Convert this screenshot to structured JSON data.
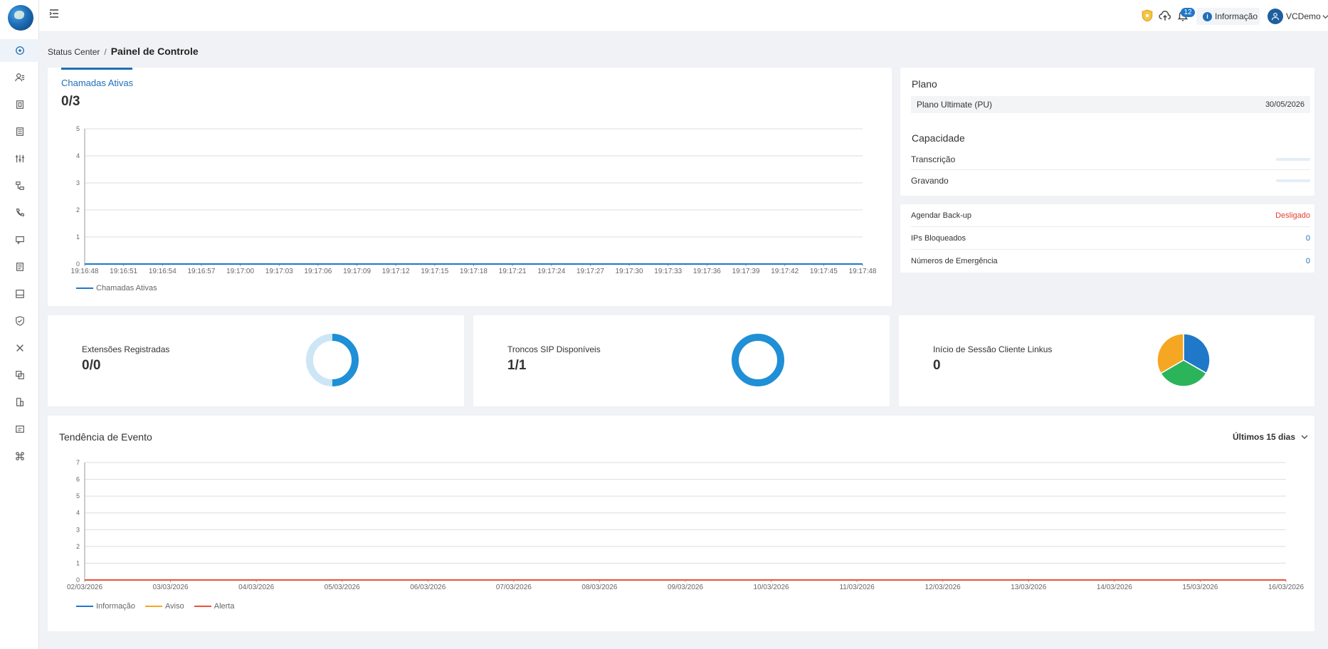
{
  "header": {
    "notification_count": "12",
    "info_label": "Informação",
    "user_name": "VCDemo"
  },
  "breadcrumb": {
    "root": "Status Center",
    "current": "Painel de Controle"
  },
  "active_calls": {
    "tab_label": "Chamadas Ativas",
    "value": "0/3",
    "legend": "Chamadas Ativas",
    "color": "#1f78c8"
  },
  "plan": {
    "title": "Plano",
    "name": "Plano Ultimate (PU)",
    "expiry": "30/05/2026",
    "capacity_title": "Capacidade",
    "capacity_items": [
      {
        "label": "Transcrição"
      },
      {
        "label": "Gravando"
      }
    ]
  },
  "stats": [
    {
      "label": "Agendar Back-up",
      "value": "Desligado"
    },
    {
      "label": "IPs Bloqueados",
      "value": "0"
    },
    {
      "label": "Números de Emergência",
      "value": "0"
    }
  ],
  "summary": {
    "extensions": {
      "label": "Extensões Registradas",
      "value": "0/0"
    },
    "trunks": {
      "label": "Troncos SIP Disponíveis",
      "value": "1/1"
    },
    "linkus": {
      "label": "Início de Sessão Cliente Linkus",
      "value": "0"
    }
  },
  "events": {
    "title": "Tendência de Evento",
    "range_label": "Últimos 15 dias",
    "legend": [
      "Informação",
      "Aviso",
      "Alerta"
    ]
  },
  "colors": {
    "accent": "#1f6fb8",
    "info": "#1f78c8",
    "warning": "#f5a623",
    "alert": "#e8543a",
    "success": "#2cb45a",
    "danger": "#e0422f"
  },
  "chart_data": [
    {
      "type": "line",
      "title": "Chamadas Ativas",
      "x": [
        "19:16:48",
        "19:16:51",
        "19:16:54",
        "19:16:57",
        "19:17:00",
        "19:17:03",
        "19:17:06",
        "19:17:09",
        "19:17:12",
        "19:17:15",
        "19:17:18",
        "19:17:21",
        "19:17:24",
        "19:17:27",
        "19:17:30",
        "19:17:33",
        "19:17:36",
        "19:17:39",
        "19:17:42",
        "19:17:45",
        "19:17:48"
      ],
      "series": [
        {
          "name": "Chamadas Ativas",
          "values": [
            0,
            0,
            0,
            0,
            0,
            0,
            0,
            0,
            0,
            0,
            0,
            0,
            0,
            0,
            0,
            0,
            0,
            0,
            0,
            0,
            0
          ]
        }
      ],
      "ylim": [
        0,
        5
      ],
      "yticks": [
        0,
        1,
        2,
        3,
        4,
        5
      ],
      "grid": true,
      "legend": "bottom-left"
    },
    {
      "type": "pie",
      "title": "Extensões Registradas",
      "series": [
        {
          "values": [
            50,
            50
          ]
        }
      ],
      "colors": [
        "#1f8fd6",
        "#cde6f6"
      ]
    },
    {
      "type": "pie",
      "title": "Troncos SIP Disponíveis",
      "series": [
        {
          "values": [
            100
          ]
        }
      ],
      "colors": [
        "#1f8fd6"
      ]
    },
    {
      "type": "pie",
      "title": "Início de Sessão Cliente Linkus",
      "series": [
        {
          "values": [
            33.3,
            33.3,
            33.4
          ]
        }
      ],
      "colors": [
        "#1f78c8",
        "#2cb45a",
        "#f5a623"
      ]
    },
    {
      "type": "line",
      "title": "Tendência de Evento",
      "x": [
        "02/03/2026",
        "03/03/2026",
        "04/03/2026",
        "05/03/2026",
        "06/03/2026",
        "07/03/2026",
        "08/03/2026",
        "09/03/2026",
        "10/03/2026",
        "11/03/2026",
        "12/03/2026",
        "13/03/2026",
        "14/03/2026",
        "15/03/2026",
        "16/03/2026"
      ],
      "series": [
        {
          "name": "Informação",
          "values": [
            0,
            0,
            0,
            0,
            0,
            0,
            0,
            0,
            0,
            0,
            0,
            0,
            0,
            0,
            0
          ]
        },
        {
          "name": "Aviso",
          "values": [
            0,
            0,
            0,
            0,
            0,
            0,
            0,
            0,
            0,
            0,
            0,
            0,
            0,
            0,
            0
          ]
        },
        {
          "name": "Alerta",
          "values": [
            0,
            0,
            0,
            0,
            0,
            0,
            0,
            0,
            0,
            0,
            0,
            0,
            0,
            0,
            0
          ]
        }
      ],
      "ylim": [
        0,
        7
      ],
      "yticks": [
        0,
        1,
        2,
        3,
        4,
        5,
        6,
        7
      ],
      "grid": true,
      "legend": "bottom-left"
    }
  ]
}
